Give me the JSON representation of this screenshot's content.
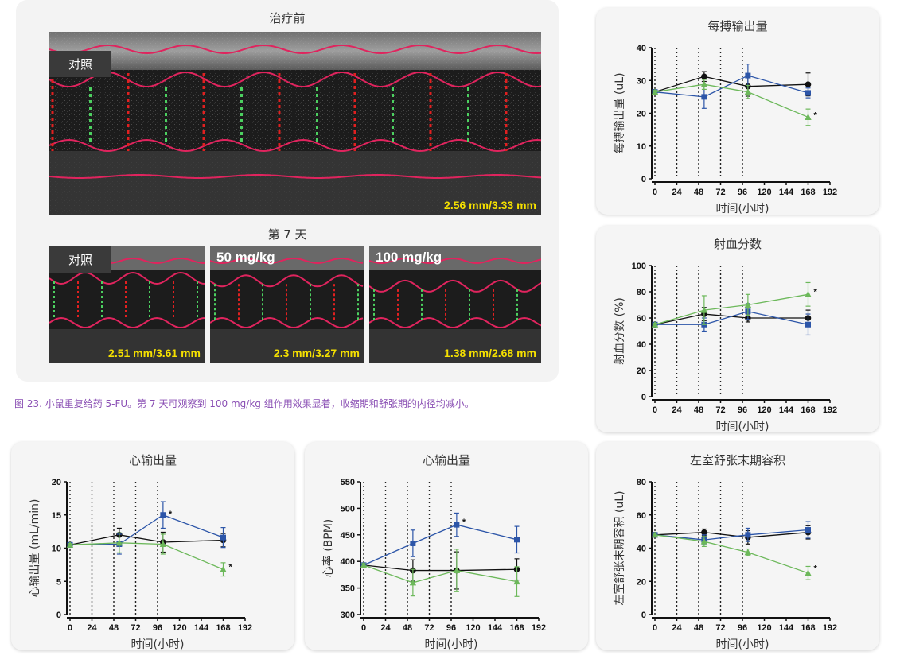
{
  "echo": {
    "before_title": "治疗前",
    "day7_title": "第 7 天",
    "top": {
      "label": "对照",
      "measurement": "2.56 mm/3.33 mm"
    },
    "bottom": [
      {
        "label": "对照",
        "measurement": "2.51 mm/3.61 mm"
      },
      {
        "label": "50 mg/kg",
        "measurement": "2.3 mm/3.27 mm"
      },
      {
        "label": "100 mg/kg",
        "measurement": "1.38 mm/2.68 mm"
      }
    ]
  },
  "caption": "图 23. 小鼠重复给药 5-FU。第 7 天可观察到 100 mg/kg 组作用效果显着，收缩期和舒张期的内径均减小。",
  "colors": {
    "black": "#111111",
    "blue": "#2c55a8",
    "green": "#6cb85a",
    "purple": "#8a4fb4"
  },
  "chart_data": [
    {
      "id": "stroke",
      "type": "line",
      "title": "每搏输出量",
      "xlabel": "时间(小时)",
      "ylabel": "每搏输出量 (uL)",
      "xlim": [
        0,
        192
      ],
      "ylim": [
        0,
        40
      ],
      "xticks": [
        0,
        24,
        48,
        72,
        96,
        120,
        144,
        168,
        192
      ],
      "yticks": [
        0,
        10,
        20,
        30,
        40
      ],
      "vlines": [
        0,
        24,
        48,
        72,
        96
      ],
      "series": [
        {
          "marker": "circle",
          "color": "#111111",
          "points": [
            [
              0,
              26.5,
              0.5
            ],
            [
              54,
              31.2,
              1.5
            ],
            [
              102,
              28.2,
              3
            ],
            [
              168,
              28.8,
              3.5
            ]
          ]
        },
        {
          "marker": "square",
          "color": "#2c55a8",
          "points": [
            [
              0,
              26.5,
              0.5
            ],
            [
              54,
              25,
              3.5
            ],
            [
              102,
              31.5,
              3.5
            ],
            [
              168,
              26.2,
              1.5
            ]
          ]
        },
        {
          "marker": "triangle",
          "color": "#6cb85a",
          "points": [
            [
              0,
              26.5,
              0.5
            ],
            [
              54,
              28.8,
              1.5
            ],
            [
              102,
              26.5,
              2
            ],
            [
              168,
              18.8,
              2.5
            ]
          ]
        }
      ],
      "annotations": [
        {
          "x": 168,
          "y": 19,
          "text": "*"
        }
      ]
    },
    {
      "id": "ef",
      "type": "line",
      "title": "射血分数",
      "xlabel": "时间(小时)",
      "ylabel": "射血分数 (%)",
      "xlim": [
        0,
        192
      ],
      "ylim": [
        0,
        100
      ],
      "xticks": [
        0,
        24,
        48,
        72,
        96,
        120,
        144,
        168,
        192
      ],
      "yticks": [
        0,
        20,
        40,
        60,
        80,
        100
      ],
      "vlines": [
        0,
        24,
        48,
        72,
        96
      ],
      "series": [
        {
          "marker": "circle",
          "color": "#111111",
          "points": [
            [
              0,
              55,
              1
            ],
            [
              54,
              63,
              5
            ],
            [
              102,
              60,
              3
            ],
            [
              168,
              60,
              6
            ]
          ]
        },
        {
          "marker": "square",
          "color": "#2c55a8",
          "points": [
            [
              0,
              55,
              1
            ],
            [
              54,
              55,
              5
            ],
            [
              102,
              65,
              6
            ],
            [
              168,
              55,
              8
            ]
          ]
        },
        {
          "marker": "triangle",
          "color": "#6cb85a",
          "points": [
            [
              0,
              55,
              1
            ],
            [
              54,
              66,
              11
            ],
            [
              102,
              70,
              8
            ],
            [
              168,
              78,
              9
            ]
          ]
        }
      ],
      "annotations": [
        {
          "x": 168,
          "y": 79,
          "text": "*"
        }
      ]
    },
    {
      "id": "co",
      "type": "line",
      "title": "心输出量",
      "xlabel": "时间(小时)",
      "ylabel": "心输出量 (mL/min)",
      "xlim": [
        0,
        192
      ],
      "ylim": [
        0,
        20
      ],
      "xticks": [
        0,
        24,
        48,
        72,
        96,
        120,
        144,
        168,
        192
      ],
      "yticks": [
        0,
        5,
        10,
        15,
        20
      ],
      "vlines": [
        0,
        24,
        48,
        72,
        96
      ],
      "series": [
        {
          "marker": "circle",
          "color": "#111111",
          "points": [
            [
              0,
              10.5,
              0.2
            ],
            [
              54,
              12,
              1
            ],
            [
              102,
              10.9,
              1.5
            ],
            [
              168,
              11.2,
              1
            ]
          ]
        },
        {
          "marker": "square",
          "color": "#2c55a8",
          "points": [
            [
              0,
              10.5,
              0.2
            ],
            [
              54,
              10.6,
              1.5
            ],
            [
              102,
              15,
              2
            ],
            [
              168,
              11.6,
              1.5
            ]
          ]
        },
        {
          "marker": "triangle",
          "color": "#6cb85a",
          "points": [
            [
              0,
              10.5,
              0.2
            ],
            [
              54,
              10.8,
              1.5
            ],
            [
              102,
              10.6,
              1.5
            ],
            [
              168,
              6.8,
              1
            ]
          ]
        }
      ],
      "annotations": [
        {
          "x": 102,
          "y": 15,
          "text": "*"
        },
        {
          "x": 168,
          "y": 7,
          "text": "*"
        }
      ]
    },
    {
      "id": "hr",
      "type": "line",
      "title": "心输出量",
      "xlabel": "时间(小时)",
      "ylabel": "心率 (BPM)",
      "xlim": [
        0,
        192
      ],
      "ylim": [
        300,
        550
      ],
      "xticks": [
        0,
        24,
        48,
        72,
        96,
        120,
        144,
        168,
        192
      ],
      "yticks": [
        300,
        350,
        400,
        450,
        500,
        550
      ],
      "vlines": [
        0,
        24,
        48,
        72,
        96
      ],
      "series": [
        {
          "marker": "circle",
          "color": "#111111",
          "points": [
            [
              0,
              393,
              3
            ],
            [
              54,
              383,
              20
            ],
            [
              102,
              383,
              35
            ],
            [
              168,
              385,
              20
            ]
          ]
        },
        {
          "marker": "square",
          "color": "#2c55a8",
          "points": [
            [
              0,
              393,
              3
            ],
            [
              54,
              434,
              25
            ],
            [
              102,
              469,
              22
            ],
            [
              168,
              441,
              25
            ]
          ]
        },
        {
          "marker": "triangle",
          "color": "#6cb85a",
          "points": [
            [
              0,
              393,
              3
            ],
            [
              54,
              360,
              25
            ],
            [
              102,
              383,
              40
            ],
            [
              168,
              362,
              28
            ]
          ]
        }
      ],
      "annotations": [
        {
          "x": 102,
          "y": 472,
          "text": "*"
        }
      ]
    },
    {
      "id": "edv",
      "type": "line",
      "title": "左室舒张末期容积",
      "xlabel": "时间(小时)",
      "ylabel": "左室舒张末期容积 (uL)",
      "xlim": [
        0,
        192
      ],
      "ylim": [
        0,
        80
      ],
      "xticks": [
        0,
        24,
        48,
        72,
        96,
        120,
        144,
        168,
        192
      ],
      "yticks": [
        0,
        20,
        40,
        60,
        80
      ],
      "vlines": [
        0,
        24,
        48,
        72,
        96
      ],
      "series": [
        {
          "marker": "circle",
          "color": "#111111",
          "points": [
            [
              0,
              48,
              1
            ],
            [
              54,
              49.5,
              2
            ],
            [
              102,
              46.5,
              4
            ],
            [
              168,
              49.5,
              4
            ]
          ]
        },
        {
          "marker": "square",
          "color": "#2c55a8",
          "points": [
            [
              0,
              48,
              1
            ],
            [
              54,
              45,
              3
            ],
            [
              102,
              48,
              4
            ],
            [
              168,
              51,
              5
            ]
          ]
        },
        {
          "marker": "triangle",
          "color": "#6cb85a",
          "points": [
            [
              0,
              48,
              1
            ],
            [
              54,
              44,
              3
            ],
            [
              102,
              37.5,
              2
            ],
            [
              168,
              25,
              4
            ]
          ]
        }
      ],
      "annotations": [
        {
          "x": 168,
          "y": 27,
          "text": "*"
        }
      ]
    }
  ]
}
